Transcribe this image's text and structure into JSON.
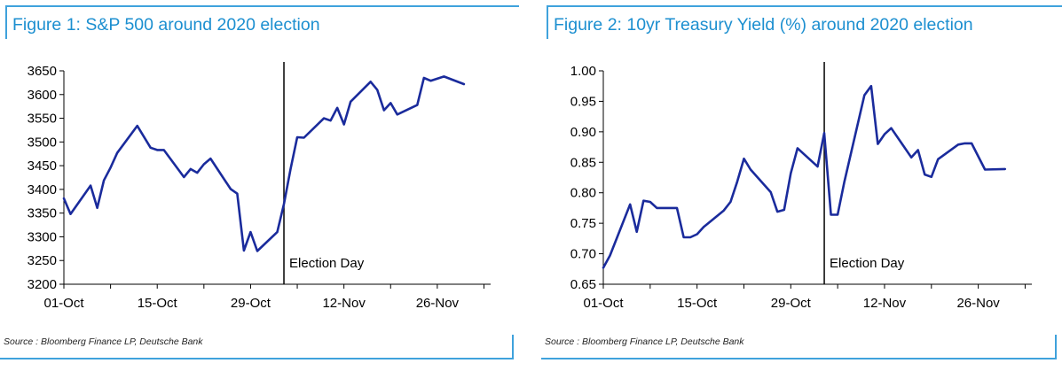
{
  "source_text": "Source : Bloomberg Finance LP, Deutsche Bank",
  "chart_data": [
    {
      "type": "line",
      "title": "Figure 1: S&P 500 around 2020 election",
      "xlabel": "",
      "ylabel": "",
      "x_range": [
        "2020-10-01",
        "2020-12-04"
      ],
      "ylim": [
        3200,
        3650
      ],
      "yticks": [
        3200,
        3250,
        3300,
        3350,
        3400,
        3450,
        3500,
        3550,
        3600,
        3650
      ],
      "xticks": [
        {
          "date": "2020-10-01",
          "label": "01-Oct"
        },
        {
          "date": "2020-10-15",
          "label": "15-Oct"
        },
        {
          "date": "2020-10-29",
          "label": "29-Oct"
        },
        {
          "date": "2020-11-12",
          "label": "12-Nov"
        },
        {
          "date": "2020-11-26",
          "label": "26-Nov"
        }
      ],
      "grid": false,
      "line_color": "#1a2b9c",
      "annotation": {
        "date": "2020-11-03",
        "label": "Election Day"
      },
      "series": [
        {
          "x": [
            "2020-10-01",
            "2020-10-02",
            "2020-10-05",
            "2020-10-06",
            "2020-10-07",
            "2020-10-08",
            "2020-10-09",
            "2020-10-12",
            "2020-10-13",
            "2020-10-14",
            "2020-10-15",
            "2020-10-16",
            "2020-10-19",
            "2020-10-20",
            "2020-10-21",
            "2020-10-22",
            "2020-10-23",
            "2020-10-26",
            "2020-10-27",
            "2020-10-28",
            "2020-10-29",
            "2020-10-30",
            "2020-11-02",
            "2020-11-03",
            "2020-11-04",
            "2020-11-05",
            "2020-11-06",
            "2020-11-09",
            "2020-11-10",
            "2020-11-11",
            "2020-11-12",
            "2020-11-13",
            "2020-11-16",
            "2020-11-17",
            "2020-11-18",
            "2020-11-19",
            "2020-11-20",
            "2020-11-23",
            "2020-11-24",
            "2020-11-25",
            "2020-11-27",
            "2020-11-30"
          ],
          "values": [
            3381,
            3348,
            3408,
            3361,
            3419,
            3446,
            3477,
            3534,
            3511,
            3488,
            3483,
            3483,
            3426,
            3443,
            3435,
            3453,
            3465,
            3401,
            3391,
            3271,
            3310,
            3270,
            3310,
            3369,
            3443,
            3510,
            3509,
            3550,
            3545,
            3572,
            3537,
            3585,
            3627,
            3610,
            3567,
            3582,
            3558,
            3578,
            3635,
            3629,
            3638,
            3622
          ]
        }
      ]
    },
    {
      "type": "line",
      "title": "Figure 2: 10yr Treasury Yield (%) around 2020 election",
      "xlabel": "",
      "ylabel": "",
      "x_range": [
        "2020-10-01",
        "2020-12-04"
      ],
      "ylim": [
        0.65,
        1.0
      ],
      "yticks": [
        0.65,
        0.7,
        0.75,
        0.8,
        0.85,
        0.9,
        0.95,
        1.0
      ],
      "xticks": [
        {
          "date": "2020-10-01",
          "label": "01-Oct"
        },
        {
          "date": "2020-10-15",
          "label": "15-Oct"
        },
        {
          "date": "2020-10-29",
          "label": "29-Oct"
        },
        {
          "date": "2020-11-12",
          "label": "12-Nov"
        },
        {
          "date": "2020-11-26",
          "label": "26-Nov"
        }
      ],
      "grid": false,
      "line_color": "#1a2b9c",
      "annotation": {
        "date": "2020-11-03",
        "label": "Election Day"
      },
      "series": [
        {
          "x": [
            "2020-10-01",
            "2020-10-02",
            "2020-10-05",
            "2020-10-06",
            "2020-10-07",
            "2020-10-08",
            "2020-10-09",
            "2020-10-12",
            "2020-10-13",
            "2020-10-14",
            "2020-10-15",
            "2020-10-16",
            "2020-10-19",
            "2020-10-20",
            "2020-10-21",
            "2020-10-22",
            "2020-10-23",
            "2020-10-26",
            "2020-10-27",
            "2020-10-28",
            "2020-10-29",
            "2020-10-30",
            "2020-11-02",
            "2020-11-03",
            "2020-11-04",
            "2020-11-05",
            "2020-11-06",
            "2020-11-09",
            "2020-11-10",
            "2020-11-11",
            "2020-11-12",
            "2020-11-13",
            "2020-11-16",
            "2020-11-17",
            "2020-11-18",
            "2020-11-19",
            "2020-11-20",
            "2020-11-23",
            "2020-11-24",
            "2020-11-25",
            "2020-11-27",
            "2020-11-30"
          ],
          "values": [
            0.677,
            0.697,
            0.781,
            0.736,
            0.787,
            0.785,
            0.775,
            0.775,
            0.727,
            0.727,
            0.732,
            0.744,
            0.771,
            0.785,
            0.818,
            0.856,
            0.838,
            0.801,
            0.769,
            0.772,
            0.832,
            0.873,
            0.843,
            0.898,
            0.764,
            0.764,
            0.818,
            0.96,
            0.975,
            0.88,
            0.896,
            0.906,
            0.858,
            0.87,
            0.83,
            0.826,
            0.855,
            0.879,
            0.881,
            0.881,
            0.838,
            0.839
          ]
        }
      ]
    }
  ]
}
